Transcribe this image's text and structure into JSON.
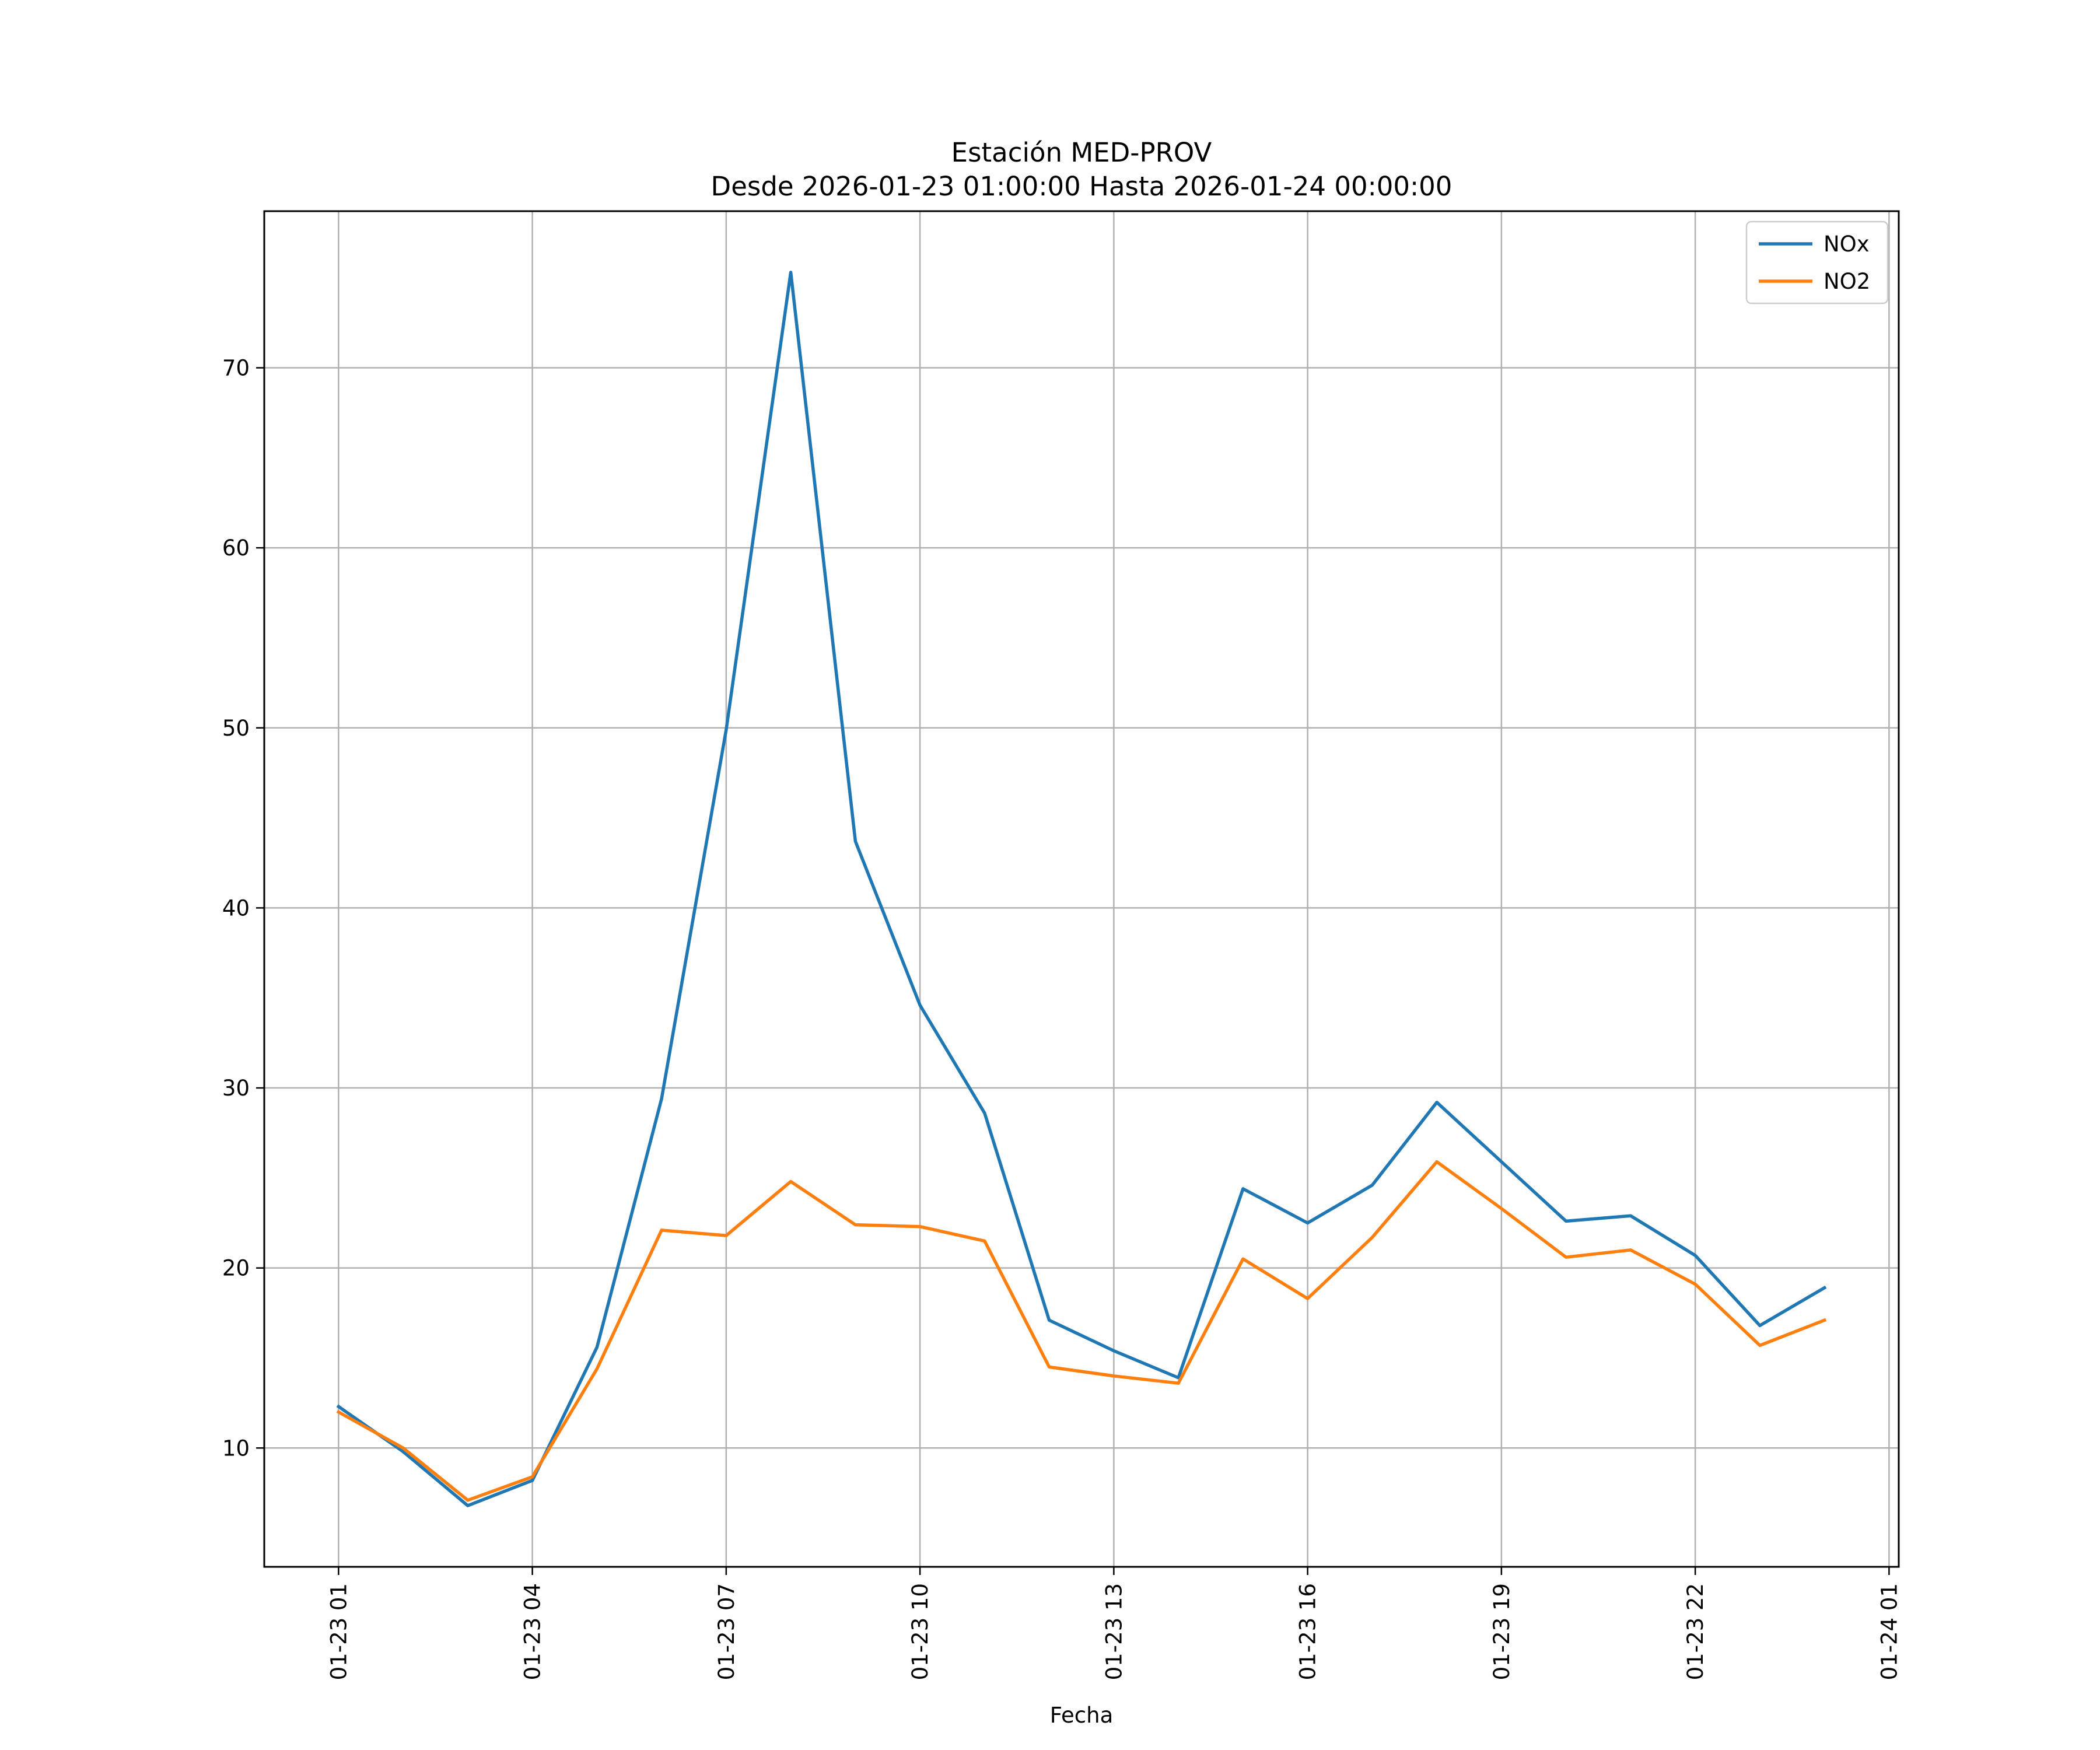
{
  "chart_data": {
    "type": "line",
    "title": "Estación MED-PROV",
    "subtitle": "Desde 2026-01-23 01:00:00 Hasta 2026-01-24 00:00:00",
    "xlabel": "Fecha",
    "ylabel": "",
    "x": [
      "2026-01-23 01:00",
      "2026-01-23 02:00",
      "2026-01-23 03:00",
      "2026-01-23 04:00",
      "2026-01-23 05:00",
      "2026-01-23 06:00",
      "2026-01-23 07:00",
      "2026-01-23 08:00",
      "2026-01-23 09:00",
      "2026-01-23 10:00",
      "2026-01-23 11:00",
      "2026-01-23 12:00",
      "2026-01-23 13:00",
      "2026-01-23 14:00",
      "2026-01-23 15:00",
      "2026-01-23 16:00",
      "2026-01-23 17:00",
      "2026-01-23 18:00",
      "2026-01-23 19:00",
      "2026-01-23 20:00",
      "2026-01-23 21:00",
      "2026-01-23 22:00",
      "2026-01-23 23:00",
      "2026-01-24 00:00"
    ],
    "x_ticks": [
      "01-23 01",
      "01-23 04",
      "01-23 07",
      "01-23 10",
      "01-23 13",
      "01-23 16",
      "01-23 19",
      "01-23 22",
      "01-24 01"
    ],
    "x_tick_values": [
      "2026-01-23 01:00",
      "2026-01-23 04:00",
      "2026-01-23 07:00",
      "2026-01-23 10:00",
      "2026-01-23 13:00",
      "2026-01-23 16:00",
      "2026-01-23 19:00",
      "2026-01-23 22:00",
      "2026-01-24 01:00"
    ],
    "xlim": [
      "2026-01-22 23:51",
      "2026-01-24 01:09"
    ],
    "y_ticks": [
      10,
      20,
      30,
      40,
      50,
      60,
      70
    ],
    "ylim": [
      3.4,
      78.7
    ],
    "grid": true,
    "legend_position": "top-right",
    "series": [
      {
        "name": "NOx",
        "color": "#1f77b4",
        "values": [
          12.3,
          9.8,
          6.8,
          8.2,
          15.6,
          29.4,
          49.9,
          75.3,
          43.7,
          34.6,
          28.6,
          17.1,
          15.4,
          13.9,
          24.4,
          22.5,
          24.6,
          29.2,
          25.9,
          22.6,
          22.9,
          20.7,
          16.8,
          18.9
        ]
      },
      {
        "name": "NO2",
        "color": "#ff7f0e",
        "values": [
          12.0,
          10.0,
          7.1,
          8.4,
          14.4,
          22.1,
          21.8,
          24.8,
          22.4,
          22.3,
          21.5,
          14.5,
          14.0,
          13.6,
          20.5,
          18.3,
          21.7,
          25.9,
          23.3,
          20.6,
          21.0,
          19.1,
          15.7,
          17.1
        ]
      }
    ]
  }
}
